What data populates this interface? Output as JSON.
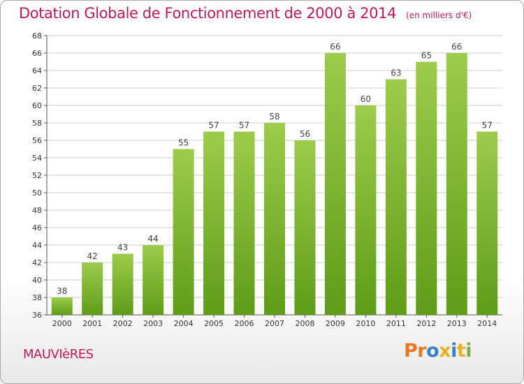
{
  "header": {
    "title": "Dotation Globale de Fonctionnement de 2000 à 2014",
    "unit_note": "(en milliers d'€)"
  },
  "footer": {
    "commune": "MAUVIèRES",
    "brand": "Proxiti"
  },
  "colors": {
    "title": "#c2185b",
    "bar_light": "#9ccc4a",
    "bar_dark": "#5f9c17",
    "grid": "#cccccc"
  },
  "chart_data": {
    "type": "bar",
    "categories": [
      "2000",
      "2001",
      "2002",
      "2003",
      "2004",
      "2005",
      "2006",
      "2007",
      "2008",
      "2009",
      "2010",
      "2011",
      "2012",
      "2013",
      "2014"
    ],
    "values": [
      38,
      42,
      43,
      44,
      55,
      57,
      57,
      58,
      56,
      66,
      60,
      63,
      65,
      66,
      57
    ],
    "title": "Dotation Globale de Fonctionnement de 2000 à 2014",
    "subtitle": "(en milliers d'€)",
    "xlabel": "",
    "ylabel": "",
    "ylim": [
      36,
      68
    ],
    "yticks": [
      36,
      38,
      40,
      42,
      44,
      46,
      48,
      50,
      52,
      54,
      56,
      58,
      60,
      62,
      64,
      66,
      68
    ],
    "grid": true,
    "data_labels": true
  }
}
